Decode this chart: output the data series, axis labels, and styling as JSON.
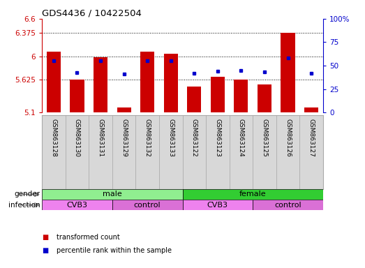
{
  "title": "GDS4436 / 10422504",
  "samples": [
    "GSM863128",
    "GSM863130",
    "GSM863131",
    "GSM863129",
    "GSM863132",
    "GSM863133",
    "GSM863122",
    "GSM863123",
    "GSM863124",
    "GSM863125",
    "GSM863126",
    "GSM863127"
  ],
  "bar_values": [
    6.07,
    5.63,
    5.99,
    5.18,
    6.07,
    6.04,
    5.52,
    5.67,
    5.63,
    5.55,
    6.37,
    5.18
  ],
  "dot_values": [
    5.93,
    5.74,
    5.93,
    5.72,
    5.93,
    5.93,
    5.73,
    5.76,
    5.77,
    5.75,
    5.97,
    5.73
  ],
  "ymin": 5.1,
  "ymax": 6.6,
  "yticks": [
    5.1,
    5.625,
    6.0,
    6.375,
    6.6
  ],
  "ytick_labels": [
    "5.1",
    "5.625",
    "6",
    "6.375",
    "6.6"
  ],
  "right_yticks": [
    0,
    25,
    50,
    75,
    100
  ],
  "right_ytick_labels": [
    "0",
    "25",
    "50",
    "75",
    "100%"
  ],
  "grid_lines": [
    5.625,
    6.0,
    6.375
  ],
  "bar_color": "#CC0000",
  "dot_color": "#0000CC",
  "bar_bottom": 5.1,
  "gender_color_male": "#90EE90",
  "gender_color_female": "#32CD32",
  "infection_color_cvb3": "#EE82EE",
  "infection_color_control": "#DA70D6",
  "gender_labels": [
    {
      "label": "male",
      "start": 0,
      "end": 6
    },
    {
      "label": "female",
      "start": 6,
      "end": 12
    }
  ],
  "infection_labels": [
    {
      "label": "CVB3",
      "start": 0,
      "end": 3
    },
    {
      "label": "control",
      "start": 3,
      "end": 6
    },
    {
      "label": "CVB3",
      "start": 6,
      "end": 9
    },
    {
      "label": "control",
      "start": 9,
      "end": 12
    }
  ],
  "tick_color_left": "#CC0000",
  "tick_color_right": "#0000CC",
  "legend_items": [
    {
      "label": "transformed count",
      "color": "#CC0000"
    },
    {
      "label": "percentile rank within the sample",
      "color": "#0000CC"
    }
  ],
  "label_cell_color": "#D8D8D8",
  "label_border_color": "#AAAAAA"
}
